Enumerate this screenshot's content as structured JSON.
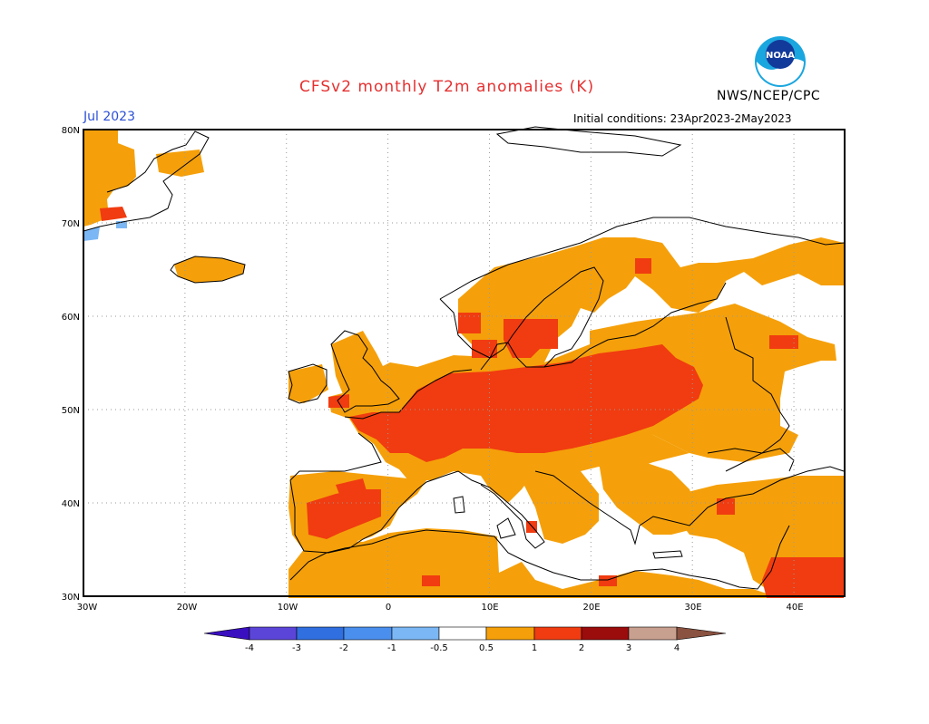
{
  "title": "CFSv2 monthly T2m anomalies (K)",
  "organization": "NWS/NCEP/CPC",
  "logo_text": "NOAA",
  "month": "Jul 2023",
  "initial_conditions": "Initial conditions: 23Apr2023-2May2023",
  "map": {
    "lon_range": [
      -30,
      45
    ],
    "lat_range": [
      30,
      80
    ],
    "lat_labels": [
      "80N",
      "70N",
      "60N",
      "50N",
      "40N",
      "30N"
    ],
    "lon_labels": [
      "30W",
      "20W",
      "10W",
      "0",
      "10E",
      "20E",
      "30E",
      "40E"
    ],
    "gridlines": "dotted"
  },
  "colorbar": {
    "labels": [
      "-4",
      "-3",
      "-2",
      "-1",
      "-0.5",
      "0.5",
      "1",
      "2",
      "3",
      "4"
    ],
    "colors": [
      "#3a0fbf",
      "#5b45d9",
      "#2f6fe0",
      "#4a8fee",
      "#7bb7f5",
      "#ffffff",
      "#f5a00a",
      "#f03c10",
      "#9b0c0c",
      "#c8a090",
      "#8a5240"
    ]
  }
}
